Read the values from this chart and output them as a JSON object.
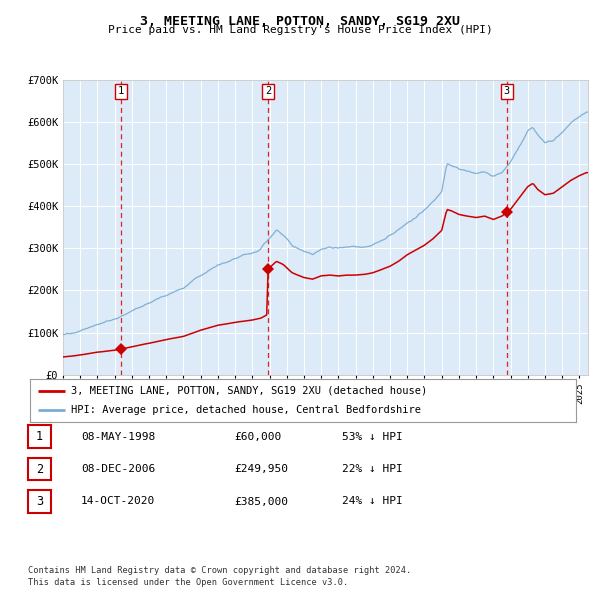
{
  "title1": "3, MEETING LANE, POTTON, SANDY, SG19 2XU",
  "title2": "Price paid vs. HM Land Registry's House Price Index (HPI)",
  "ylim": [
    0,
    700000
  ],
  "yticks": [
    0,
    100000,
    200000,
    300000,
    400000,
    500000,
    600000,
    700000
  ],
  "ytick_labels": [
    "£0",
    "£100K",
    "£200K",
    "£300K",
    "£400K",
    "£500K",
    "£600K",
    "£700K"
  ],
  "x_start_year": 1995,
  "x_end_year": 2025,
  "sale_t": [
    1998.37,
    2006.92,
    2020.79
  ],
  "sale_prices": [
    60000,
    249950,
    385000
  ],
  "sale_labels": [
    "1",
    "2",
    "3"
  ],
  "sale_label_rows": [
    [
      "1",
      "08-MAY-1998",
      "£60,000",
      "53% ↓ HPI"
    ],
    [
      "2",
      "08-DEC-2006",
      "£249,950",
      "22% ↓ HPI"
    ],
    [
      "3",
      "14-OCT-2020",
      "£385,000",
      "24% ↓ HPI"
    ]
  ],
  "red_color": "#cc0000",
  "blue_color": "#7badd4",
  "dash_color": "#dd0000",
  "bg_color": "#ddeaf7",
  "legend_red": "3, MEETING LANE, POTTON, SANDY, SG19 2XU (detached house)",
  "legend_blue": "HPI: Average price, detached house, Central Bedfordshire",
  "footer": "Contains HM Land Registry data © Crown copyright and database right 2024.\nThis data is licensed under the Open Government Licence v3.0."
}
